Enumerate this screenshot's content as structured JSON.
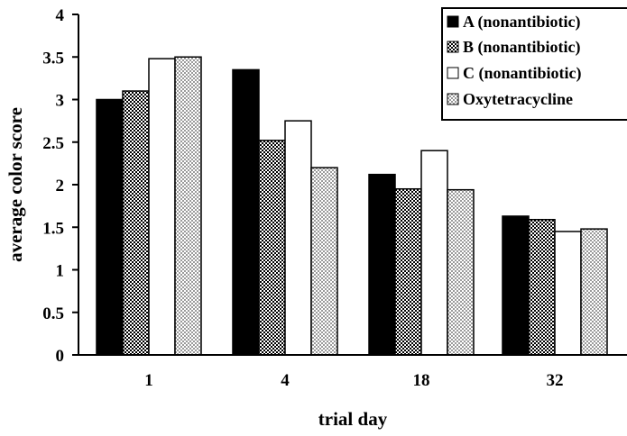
{
  "chart_data": {
    "type": "bar",
    "title": "",
    "xlabel": "trial day",
    "ylabel": "average color score",
    "categories": [
      "1",
      "4",
      "18",
      "32"
    ],
    "ylim": [
      0,
      4
    ],
    "yticks": [
      "0",
      "0.5",
      "1",
      "1.5",
      "2",
      "2.5",
      "3",
      "3.5",
      "4"
    ],
    "grid": false,
    "legend_position": "top-right",
    "series": [
      {
        "name": "A (nonantibiotic)",
        "fill": "solid-black",
        "values": [
          3.0,
          3.35,
          2.12,
          1.63
        ]
      },
      {
        "name": "B (nonantibiotic)",
        "fill": "dark-checker",
        "values": [
          3.1,
          2.52,
          1.95,
          1.59
        ]
      },
      {
        "name": "C (nonantibiotic)",
        "fill": "white",
        "values": [
          3.48,
          2.75,
          2.4,
          1.45
        ]
      },
      {
        "name": "Oxytetracycline",
        "fill": "light-checker",
        "values": [
          3.5,
          2.2,
          1.94,
          1.48
        ]
      }
    ]
  }
}
